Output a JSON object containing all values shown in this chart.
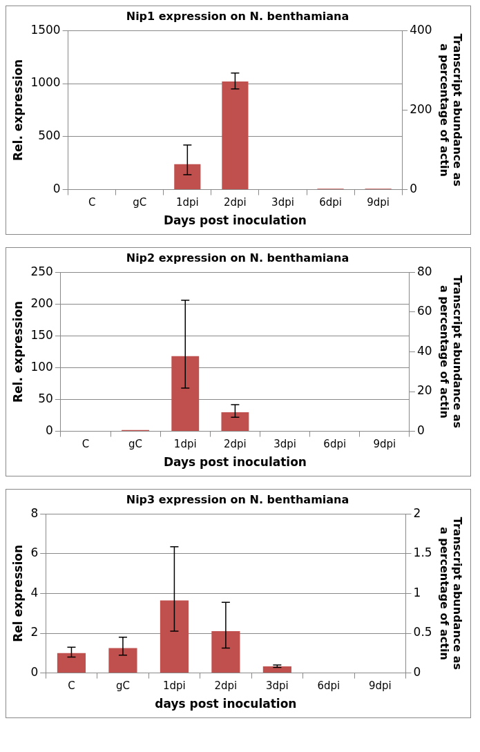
{
  "chart_data": [
    {
      "type": "bar",
      "title": "Nip1 expression on N. benthamiana",
      "xlabel": "Days post inoculation",
      "ylabel": "Rel. expression",
      "y2label": "Transcript abundance as a percentage of actin",
      "categories": [
        "C",
        "gC",
        "1dpi",
        "2dpi",
        "3dpi",
        "6dpi",
        "9dpi"
      ],
      "series": [
        {
          "color": "#c0504d",
          "values": [
            0,
            0,
            240,
            1020,
            0,
            8,
            8
          ],
          "errors": [
            null,
            null,
            [
              140,
              420
            ],
            [
              950,
              1100
            ],
            null,
            null,
            null
          ]
        }
      ],
      "ylim": [
        0,
        1500
      ],
      "yticks": [
        0,
        500,
        1000,
        1500
      ],
      "y2lim": [
        0,
        400
      ],
      "y2ticks": [
        0,
        200,
        400
      ],
      "grid": "y",
      "legend": false
    },
    {
      "type": "bar",
      "title": "Nip2 expression on N. benthamiana",
      "xlabel": "Days post inoculation",
      "ylabel": "Rel. expression",
      "y2label": "Transcript abundance as a percentage of actin",
      "categories": [
        "C",
        "gC",
        "1dpi",
        "2dpi",
        "3dpi",
        "6dpi",
        "9dpi"
      ],
      "series": [
        {
          "color": "#c0504d",
          "values": [
            0,
            2,
            118,
            30,
            0,
            0,
            0
          ],
          "errors": [
            null,
            null,
            [
              68,
              206
            ],
            [
              22,
              42
            ],
            null,
            null,
            null
          ]
        }
      ],
      "ylim": [
        0,
        250
      ],
      "yticks": [
        0,
        50,
        100,
        150,
        200,
        250
      ],
      "y2lim": [
        0,
        80
      ],
      "y2ticks": [
        0,
        20,
        40,
        60,
        80
      ],
      "grid": "y",
      "legend": false
    },
    {
      "type": "bar",
      "title": "Nip3 expression on N. benthamiana",
      "xlabel": "days post inoculation",
      "ylabel": "Rel expression",
      "y2label": "Transcript abundance as a percentage  of actin",
      "categories": [
        "C",
        "gC",
        "1dpi",
        "2dpi",
        "3dpi",
        "6dpi",
        "9dpi"
      ],
      "series": [
        {
          "color": "#c0504d",
          "values": [
            1.0,
            1.25,
            3.65,
            2.1,
            0.33,
            0.02,
            0.02
          ],
          "errors": [
            [
              0.8,
              1.3
            ],
            [
              0.9,
              1.8
            ],
            [
              2.1,
              6.35
            ],
            [
              1.25,
              3.55
            ],
            [
              0.28,
              0.4
            ],
            null,
            null
          ]
        }
      ],
      "ylim": [
        0,
        8
      ],
      "yticks": [
        0,
        2,
        4,
        6,
        8
      ],
      "y2lim": [
        0,
        2
      ],
      "y2ticks": [
        0,
        0.5,
        1,
        1.5,
        2
      ],
      "grid": "y",
      "legend": false
    }
  ]
}
